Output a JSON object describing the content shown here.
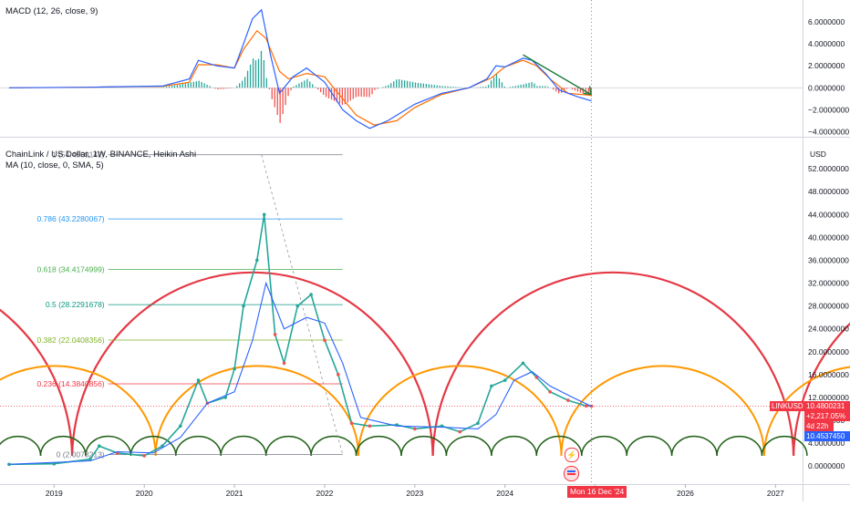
{
  "macd_panel": {
    "indicator_label": "MACD (12, 26, close, 9)",
    "y_ticks": [
      "6.0000000",
      "4.0000000",
      "2.0000000",
      "0.0000000",
      "−2.0000000",
      "−4.0000000"
    ],
    "y_tick_values": [
      6,
      4,
      2,
      0,
      -2,
      -4
    ],
    "y_range": [
      -4.3,
      7.5
    ],
    "colors": {
      "macd": "#2962ff",
      "signal": "#ff6d00",
      "hist_pos": "#26a69a",
      "hist_neg": "#ef5350",
      "arrow": "#1b7a3a"
    }
  },
  "price_panel": {
    "symbol_title": "ChainLink / US Dollar, 1W, BINANCE, Heikin Ashi",
    "ma_label": "MA (10, close, 0, SMA, 5)",
    "currency": "USD",
    "y_ticks": [
      "52.0000000",
      "48.0000000",
      "44.0000000",
      "40.0000000",
      "36.0000000",
      "32.0000000",
      "28.0000000",
      "24.0000000",
      "20.0000000",
      "16.0000000",
      "12.0000000",
      "8.0000000",
      "4.0000000",
      "0.0000000"
    ],
    "y_tick_values": [
      52,
      48,
      44,
      40,
      36,
      32,
      28,
      24,
      20,
      16,
      12,
      8,
      4,
      0
    ],
    "y_range": [
      -3,
      56
    ],
    "fib_levels": [
      {
        "label": "1 (54.4509142)",
        "value": 54.4509142,
        "color": "#787b86"
      },
      {
        "label": "0.786 (43.2280067)",
        "value": 43.2280067,
        "color": "#2196f3"
      },
      {
        "label": "0.618 (34.4174999)",
        "value": 34.4174999,
        "color": "#4caf50"
      },
      {
        "label": "0.5 (28.2291678)",
        "value": 28.2291678,
        "color": "#089981"
      },
      {
        "label": "0.382 (22.0408356)",
        "value": 22.0408356,
        "color": "#81b22a"
      },
      {
        "label": "0.236 (14.3840856)",
        "value": 14.3840856,
        "color": "#f23645"
      },
      {
        "label": "0 (2.0073213)",
        "value": 2.0073213,
        "color": "#787b86"
      }
    ],
    "last_price": {
      "symbol": "LINKUSD",
      "price": "10.4800231",
      "change": "+2,217.05%",
      "countdown": "4d 22h",
      "ma_value": "10.4537450"
    },
    "colors": {
      "up": "#26a69a",
      "down": "#ef5350",
      "ma": "#2962ff",
      "cycle_large": "#e53945",
      "cycle_medium": "#ff9800",
      "cycle_small": "#1e5e14"
    }
  },
  "time_axis": {
    "labels": [
      "2019",
      "2020",
      "2021",
      "2022",
      "2023",
      "2024",
      "2025",
      "2026",
      "2027"
    ],
    "label_values": [
      2019,
      2020,
      2021,
      2022,
      2023,
      2024,
      2025,
      2026,
      2027
    ],
    "cursor_label": "Mon 16 Dec '24",
    "cursor_value": 2024.96
  },
  "chart_data": {
    "type": "line",
    "title": "ChainLink / US Dollar, 1W, BINANCE, Heikin Ashi",
    "x_unit": "year",
    "price_series": {
      "name": "ChainLink / US Dollar",
      "x": [
        2018.5,
        2019.0,
        2019.4,
        2019.5,
        2019.7,
        2020.0,
        2020.2,
        2020.4,
        2020.6,
        2020.7,
        2020.9,
        2021.0,
        2021.1,
        2021.25,
        2021.33,
        2021.45,
        2021.55,
        2021.7,
        2021.85,
        2022.0,
        2022.15,
        2022.3,
        2022.5,
        2022.8,
        2023.0,
        2023.3,
        2023.5,
        2023.7,
        2023.85,
        2024.0,
        2024.2,
        2024.35,
        2024.5,
        2024.7,
        2024.9,
        2024.96
      ],
      "y": [
        0.3,
        0.4,
        1.2,
        3.5,
        2.3,
        1.8,
        3.5,
        7.0,
        15.0,
        11.0,
        12.0,
        17.0,
        28.0,
        36.0,
        44.0,
        23.0,
        18.0,
        28.0,
        30.0,
        22.0,
        16.0,
        7.5,
        7.0,
        7.2,
        6.5,
        7.0,
        6.0,
        7.5,
        14.0,
        15.0,
        18.0,
        15.5,
        13.0,
        11.5,
        10.5,
        10.48
      ]
    },
    "ma_series": {
      "name": "MA (10, close, 0, SMA, 5)",
      "x": [
        2018.5,
        2019.4,
        2019.7,
        2020.1,
        2020.4,
        2020.7,
        2021.0,
        2021.2,
        2021.35,
        2021.55,
        2021.8,
        2022.0,
        2022.2,
        2022.4,
        2022.8,
        2023.3,
        2023.7,
        2023.9,
        2024.1,
        2024.3,
        2024.5,
        2024.75,
        2024.96
      ],
      "y": [
        0.3,
        0.9,
        2.5,
        2.3,
        5.0,
        11.0,
        13.0,
        22.0,
        32.0,
        24.0,
        26.0,
        25.0,
        18.0,
        8.5,
        7.0,
        6.8,
        6.5,
        9.0,
        15.0,
        16.5,
        14.0,
        12.0,
        10.45
      ]
    },
    "macd_series": {
      "name": "MACD",
      "x": [
        2018.5,
        2019.4,
        2019.7,
        2020.2,
        2020.5,
        2020.6,
        2020.8,
        2021.0,
        2021.1,
        2021.2,
        2021.3,
        2021.4,
        2021.5,
        2021.65,
        2021.8,
        2022.0,
        2022.2,
        2022.35,
        2022.5,
        2022.7,
        2023.0,
        2023.3,
        2023.6,
        2023.8,
        2023.9,
        2024.0,
        2024.2,
        2024.3,
        2024.45,
        2024.6,
        2024.8,
        2024.96
      ],
      "y": [
        0.0,
        0.05,
        0.1,
        0.15,
        0.8,
        2.5,
        2.0,
        1.8,
        4.0,
        6.3,
        7.1,
        3.0,
        -0.5,
        1.0,
        1.8,
        0.5,
        -2.0,
        -3.0,
        -3.7,
        -3.0,
        -1.5,
        -0.5,
        0.0,
        0.8,
        2.0,
        1.9,
        2.7,
        2.5,
        1.3,
        -0.2,
        -0.8,
        -1.2
      ]
    },
    "signal_series": {
      "name": "Signal",
      "x": [
        2018.5,
        2019.4,
        2019.7,
        2020.2,
        2020.5,
        2020.6,
        2020.8,
        2021.0,
        2021.1,
        2021.25,
        2021.35,
        2021.5,
        2021.6,
        2021.8,
        2022.0,
        2022.2,
        2022.35,
        2022.55,
        2022.8,
        2023.0,
        2023.3,
        2023.6,
        2023.85,
        2024.0,
        2024.2,
        2024.35,
        2024.5,
        2024.7,
        2024.96
      ],
      "y": [
        0.0,
        0.05,
        0.1,
        0.12,
        0.5,
        2.1,
        2.1,
        1.8,
        3.5,
        5.2,
        4.5,
        1.5,
        0.8,
        1.3,
        1.0,
        -1.0,
        -2.5,
        -3.4,
        -3.0,
        -1.8,
        -0.6,
        0.0,
        0.9,
        1.9,
        2.5,
        2.0,
        0.8,
        -0.5,
        -0.7
      ]
    },
    "xlim": [
      2018.4,
      2027.3
    ],
    "price_ylim": [
      -3,
      56
    ],
    "macd_ylim": [
      -4.3,
      7.5
    ],
    "grid": false,
    "legend": "top-left"
  }
}
